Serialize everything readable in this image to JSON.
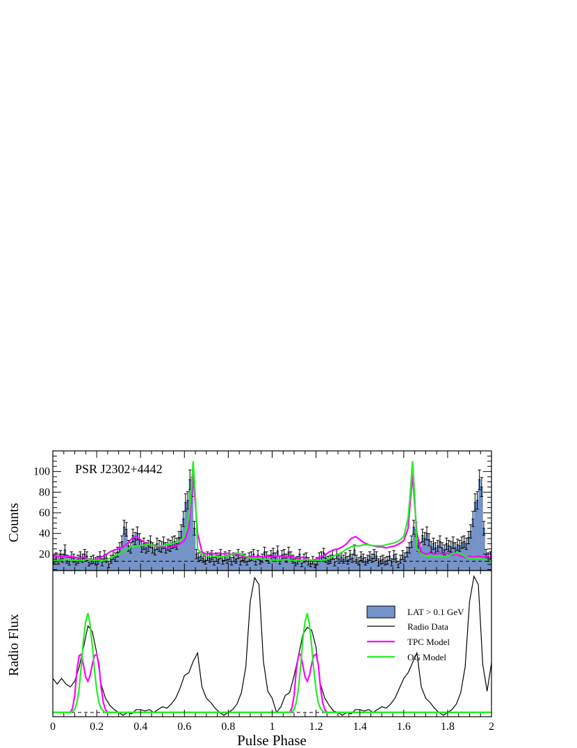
{
  "chart_data": {
    "type": "line",
    "title": "PSR J2302+4442",
    "xlabel": "Pulse Phase",
    "top_ylabel": "Counts",
    "bottom_ylabel": "Radio Flux",
    "xlim": [
      0,
      2
    ],
    "top_ylim": [
      4,
      120
    ],
    "bottom_ylim": [
      -0.03,
      1.0
    ],
    "x_ticks": [
      "0",
      "0.2",
      "0.4",
      "0.6",
      "0.8",
      "1",
      "1.2",
      "1.4",
      "1.6",
      "1.8",
      "2"
    ],
    "top_y_ticks": [
      "20",
      "40",
      "60",
      "80",
      "100"
    ],
    "background_level": 13,
    "grid": false,
    "legend_position": "bottom-panel top-right",
    "legend": {
      "lat": "LAT > 0.1 GeV",
      "radio": "Radio Data",
      "tpc": "TPC Model",
      "og": "OG Model"
    },
    "colors": {
      "lat_fill": "#7593c7",
      "tpc": "#ff00ff",
      "og": "#22ee22",
      "radio": "#000000"
    },
    "lat_counts": {
      "bin_width": 0.01,
      "values": [
        15,
        17,
        14,
        19,
        16,
        24,
        15,
        13,
        18,
        16,
        13,
        15,
        18,
        16,
        20,
        18,
        12,
        14,
        15,
        13,
        14,
        18,
        12,
        19,
        16,
        10,
        15,
        19,
        17,
        22,
        26,
        32,
        46,
        44,
        28,
        26,
        38,
        35,
        40,
        34,
        27,
        30,
        26,
        28,
        32,
        26,
        24,
        30,
        28,
        27,
        31,
        26,
        29,
        28,
        31,
        32,
        30,
        36,
        42,
        54,
        70,
        72,
        92,
        85,
        45,
        20,
        17,
        18,
        16,
        14,
        18,
        16,
        19,
        13,
        17,
        15,
        20,
        14,
        18,
        15,
        19,
        13,
        17,
        15,
        20,
        13,
        18,
        16,
        13,
        17,
        18,
        20,
        13,
        19,
        14,
        16,
        22,
        18,
        15,
        19,
        21,
        17,
        23,
        14,
        19,
        20,
        16,
        22,
        18,
        15,
        12,
        14,
        20,
        11,
        16,
        17,
        13,
        11,
        14,
        10,
        13,
        17,
        18,
        21,
        16,
        14,
        15,
        19,
        12,
        20,
        15,
        17
      ]
    },
    "radio_data": {
      "x": [
        0.0,
        0.02,
        0.04,
        0.06,
        0.08,
        0.1,
        0.12,
        0.14,
        0.16,
        0.18,
        0.2,
        0.22,
        0.24,
        0.26,
        0.28,
        0.3,
        0.32,
        0.34,
        0.36,
        0.38,
        0.4,
        0.42,
        0.44,
        0.46,
        0.48,
        0.5,
        0.52,
        0.54,
        0.56,
        0.58,
        0.6,
        0.62,
        0.64,
        0.66,
        0.68,
        0.7,
        0.72,
        0.74,
        0.76,
        0.78,
        0.8,
        0.82,
        0.84,
        0.86,
        0.88,
        0.9,
        0.92,
        0.94,
        0.96,
        0.98,
        1.0,
        1.02,
        1.04,
        1.06,
        1.08,
        1.1,
        1.12,
        1.14,
        1.16,
        1.18,
        1.2,
        1.22,
        1.24,
        1.26,
        1.28,
        1.3,
        1.32,
        1.34,
        1.36,
        1.38,
        1.4,
        1.42,
        1.44,
        1.46,
        1.48,
        1.5,
        1.52,
        1.54,
        1.56,
        1.58,
        1.6,
        1.62,
        1.64,
        1.66,
        1.68,
        1.7,
        1.72,
        1.74,
        1.76,
        1.78,
        1.8,
        1.82,
        1.84,
        1.86,
        1.88,
        1.9,
        1.92,
        1.94,
        1.96,
        1.98,
        2.0
      ],
      "y": [
        0.24,
        0.2,
        0.24,
        0.2,
        0.18,
        0.22,
        0.32,
        0.46,
        0.61,
        0.57,
        0.42,
        0.2,
        0.1,
        0.05,
        0.02,
        0.0,
        -0.02,
        0.0,
        -0.01,
        0.02,
        0.02,
        0.01,
        0.02,
        0.0,
        0.02,
        0.04,
        0.03,
        0.06,
        0.1,
        0.17,
        0.26,
        0.28,
        0.36,
        0.42,
        0.18,
        0.1,
        0.07,
        0.03,
        0.0,
        -0.02,
        0.0,
        0.02,
        0.06,
        0.14,
        0.32,
        0.78,
        0.95,
        0.9,
        0.36,
        0.15,
        0.1,
        0.0,
        0.04,
        0.12,
        0.14,
        0.26,
        0.4,
        0.55,
        0.6,
        0.58,
        0.46,
        0.2,
        0.1,
        0.05,
        0.01,
        0.0,
        -0.02,
        0.0,
        -0.01,
        0.02,
        0.02,
        0.01,
        0.02,
        0.0,
        0.02,
        0.04,
        0.03,
        0.06,
        0.1,
        0.17,
        0.24,
        0.28,
        0.35,
        0.42,
        0.18,
        0.1,
        0.07,
        0.03,
        0.0,
        -0.02,
        0.0,
        0.02,
        0.06,
        0.14,
        0.32,
        0.78,
        0.96,
        0.9,
        0.34,
        0.15,
        0.35
      ]
    },
    "tpc_model": {
      "top": {
        "x": [
          0.0,
          0.02,
          0.04,
          0.06,
          0.08,
          0.1,
          0.12,
          0.14,
          0.16,
          0.18,
          0.2,
          0.22,
          0.24,
          0.26,
          0.28,
          0.3,
          0.32,
          0.34,
          0.36,
          0.38,
          0.4,
          0.42,
          0.44,
          0.46,
          0.48,
          0.5,
          0.52,
          0.54,
          0.56,
          0.58,
          0.6,
          0.62,
          0.64,
          0.66,
          0.68,
          0.7,
          0.72,
          0.74,
          0.76,
          0.78,
          0.8,
          0.82,
          0.84,
          0.86,
          0.88,
          0.9,
          0.92,
          0.94,
          0.96,
          0.98,
          1.0,
          1.02,
          1.04,
          1.06,
          1.08,
          1.1,
          1.12,
          1.14,
          1.16,
          1.18,
          1.2,
          1.22,
          1.24,
          1.26,
          1.28,
          1.3,
          1.32,
          1.34,
          1.36,
          1.38,
          1.4,
          1.42,
          1.44,
          1.46,
          1.48,
          1.5,
          1.52,
          1.54,
          1.56,
          1.58,
          1.6,
          1.62,
          1.64,
          1.66,
          1.68,
          1.7,
          1.72,
          1.74,
          1.76,
          1.78,
          1.8,
          1.82,
          1.84,
          1.86,
          1.88,
          1.9,
          1.92,
          1.94,
          1.96,
          1.98,
          2.0
        ],
        "y": [
          17,
          18,
          18,
          17,
          18,
          17,
          16,
          17,
          15,
          14,
          15,
          17,
          19,
          22,
          24,
          25,
          27,
          30,
          35,
          37,
          34,
          31,
          29,
          28,
          27,
          27,
          26,
          27,
          28,
          30,
          33,
          45,
          97,
          40,
          22,
          20,
          21,
          20,
          21,
          20,
          21,
          19,
          20,
          18,
          17,
          18,
          17,
          18,
          17,
          18,
          17,
          18,
          18,
          17,
          18,
          17,
          16,
          17,
          15,
          14,
          15,
          17,
          19,
          22,
          24,
          25,
          27,
          30,
          35,
          37,
          34,
          31,
          29,
          28,
          27,
          27,
          26,
          27,
          28,
          30,
          33,
          45,
          97,
          40,
          22,
          20,
          21,
          20,
          21,
          20,
          21,
          19,
          20,
          18,
          17,
          18,
          17,
          18,
          17,
          18,
          17
        ]
      },
      "bottom": {
        "x": [
          0.0,
          0.08,
          0.09,
          0.1,
          0.11,
          0.12,
          0.13,
          0.14,
          0.15,
          0.16,
          0.17,
          0.18,
          0.19,
          0.2,
          0.21,
          0.22,
          0.23,
          0.24,
          0.25,
          0.27,
          1.0,
          1.08,
          1.09,
          1.1,
          1.11,
          1.12,
          1.13,
          1.14,
          1.15,
          1.16,
          1.17,
          1.18,
          1.19,
          1.2,
          1.21,
          1.22,
          1.23,
          1.24,
          1.25,
          1.27,
          2.0
        ],
        "y": [
          0.0,
          0.0,
          0.03,
          0.12,
          0.3,
          0.4,
          0.41,
          0.33,
          0.25,
          0.22,
          0.26,
          0.34,
          0.4,
          0.41,
          0.34,
          0.18,
          0.07,
          0.02,
          0.0,
          0.0,
          0.0,
          0.0,
          0.03,
          0.12,
          0.3,
          0.4,
          0.41,
          0.33,
          0.25,
          0.22,
          0.26,
          0.34,
          0.4,
          0.41,
          0.34,
          0.18,
          0.07,
          0.02,
          0.0,
          0.0,
          0.0
        ]
      }
    },
    "og_model": {
      "top": {
        "x": [
          0.0,
          0.02,
          0.04,
          0.06,
          0.08,
          0.1,
          0.12,
          0.14,
          0.16,
          0.18,
          0.2,
          0.22,
          0.24,
          0.26,
          0.28,
          0.3,
          0.32,
          0.34,
          0.36,
          0.38,
          0.4,
          0.42,
          0.44,
          0.46,
          0.48,
          0.5,
          0.52,
          0.54,
          0.56,
          0.58,
          0.6,
          0.62,
          0.63,
          0.64,
          0.65,
          0.66,
          0.68,
          0.7,
          0.72,
          0.74,
          0.76,
          0.78,
          0.8,
          0.82,
          0.84,
          0.86,
          0.88,
          0.9,
          0.92,
          0.94,
          0.96,
          0.98,
          1.0,
          1.02,
          1.04,
          1.06,
          1.08,
          1.1,
          1.12,
          1.14,
          1.16,
          1.18,
          1.2,
          1.22,
          1.24,
          1.26,
          1.28,
          1.3,
          1.32,
          1.34,
          1.36,
          1.38,
          1.4,
          1.42,
          1.44,
          1.46,
          1.48,
          1.5,
          1.52,
          1.54,
          1.56,
          1.58,
          1.6,
          1.62,
          1.63,
          1.64,
          1.65,
          1.66,
          1.68,
          1.7,
          1.72,
          1.74,
          1.76,
          1.78,
          1.8,
          1.82,
          1.84,
          1.86,
          1.88,
          1.9,
          1.92,
          1.94,
          1.96,
          1.98,
          2.0
        ],
        "y": [
          14,
          14,
          14,
          15,
          14,
          14,
          14,
          14,
          15,
          14,
          14,
          14,
          14,
          16,
          18,
          20,
          22,
          25,
          27,
          28,
          28,
          29,
          29,
          28,
          28,
          28,
          29,
          30,
          31,
          33,
          37,
          55,
          80,
          110,
          75,
          25,
          20,
          18,
          18,
          18,
          17,
          18,
          18,
          20,
          21,
          20,
          18,
          16,
          16,
          16,
          15,
          15,
          14,
          14,
          14,
          15,
          14,
          14,
          14,
          14,
          15,
          14,
          14,
          14,
          14,
          16,
          18,
          20,
          22,
          25,
          27,
          28,
          28,
          29,
          29,
          28,
          28,
          28,
          29,
          30,
          31,
          33,
          37,
          55,
          80,
          110,
          75,
          25,
          20,
          18,
          18,
          18,
          17,
          18,
          18,
          20,
          21,
          20,
          18,
          16,
          16,
          16,
          15,
          15,
          14
        ]
      },
      "bottom": {
        "x": [
          0.0,
          0.08,
          0.1,
          0.11,
          0.12,
          0.13,
          0.14,
          0.15,
          0.16,
          0.17,
          0.18,
          0.19,
          0.2,
          0.21,
          0.22,
          0.23,
          0.24,
          0.26,
          1.0,
          1.08,
          1.1,
          1.11,
          1.12,
          1.13,
          1.14,
          1.15,
          1.16,
          1.17,
          1.18,
          1.19,
          1.2,
          1.21,
          1.22,
          1.23,
          1.24,
          1.26,
          2.0
        ],
        "y": [
          0.0,
          0.0,
          0.02,
          0.07,
          0.17,
          0.33,
          0.52,
          0.64,
          0.7,
          0.62,
          0.47,
          0.3,
          0.16,
          0.07,
          0.03,
          0.01,
          0.0,
          0.0,
          0.0,
          0.0,
          0.02,
          0.07,
          0.17,
          0.33,
          0.52,
          0.64,
          0.7,
          0.62,
          0.47,
          0.3,
          0.16,
          0.07,
          0.03,
          0.01,
          0.0,
          0.0,
          0.0
        ]
      }
    }
  }
}
